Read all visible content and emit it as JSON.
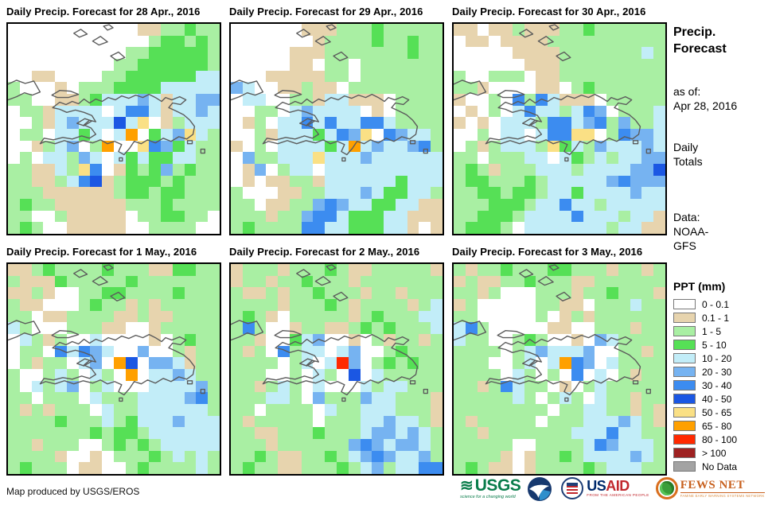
{
  "panels": [
    {
      "title": "Daily Precip. Forecast for 28 Apr., 2016",
      "grid": [
        "WWWWWWWWWWWTTggGgg",
        "WWWWWWWWWWWWgGGgGg",
        "WWWWWWWWWWggGGGGGg",
        "WWWWWWWWWggGGGGGGg",
        "WWTTWWWWggGGGGGGcc",
        "gWWWTWgggGGGGccccc",
        "ggWWTTgGcccbcTccbb",
        "WggTccccWcBBcTccbc",
        "WWgTcbcccDcyWTgccc",
        "WggWccGcWcoWGcbycg",
        "WWTgcbWgoWWyBbGcgg",
        "WgWccgbcWcGcGGccgg",
        "ggTTcgyBWTGgGbgGgg",
        "ggTTgcBDTgGGGgGggg",
        "gggTTTTTTgGGgGGggg",
        "gGggTTTTTTgggGgggg",
        "ggWWgTTTTTWggGGggW",
        "gGgWWTTTTTWWggggWW"
      ]
    },
    {
      "title": "Daily Precip. Forecast for 29 Apr., 2016",
      "grid": [
        "WWWWWWTTTgggGggggg",
        "WWWWWWWTggggGggGgg",
        "WWWWWTTTgggggggGgg",
        "WWWWWTTWggWggggggg",
        "WWWTTTTTggWggggggg",
        "bcWWTTgTTWgggggggg",
        "WccWWggTccTTTWgggg",
        "WWggWcbccccWTWgggg",
        "WTgWccBcBccBBcgggg",
        "WWgTcccGcBbyWBbccg",
        "TWgWccccGcocbccbBg",
        "Wbggcccycccbcccccc",
        "WTbWgccWcccccccccc",
        "WTWTTggTccccccGccc",
        "gWWWTTggcccbcGGccg",
        "ggWTTggbBbccGGccTT",
        "gggTggbBBcGGGccTTT",
        "gGggggBBccGGGccTWT"
      ]
    },
    {
      "title": "Daily Precip. Forecast for 30 Apr., 2016",
      "grid": [
        "TTWTTgTTTggGgggggg",
        "WTTWTTTTgggggggggg",
        "WWWWWTTTTgggggggcg",
        "WWWWWWTTTggggggggg",
        "gWWgggWTTggggggggg",
        "ggTWWWWTTWgGgggggg",
        "TWWgWBgBcTTTWggggg",
        "WTWgWcBccgcBbWgggc",
        "TWTWcccgBBcbBgbggc",
        "WWgWccWcBByyWgBbbc",
        "WgTgcccgyGcgbcccbc",
        "ggWgggccWcGgcgccbb",
        "gGgTgggcccgccccbbD",
        "gGGgggGgcccccbBbbb",
        "ggGGgGGgccGccccbcc",
        "gggGGGgccBccgccccc",
        "ggGGGgccccBcccgccT",
        "gGGGgWcccccccgccTT"
      ]
    },
    {
      "title": "Daily Precip. Forecast for 1 May., 2016",
      "grid": [
        "TTgGggggGgggTTGGgg",
        "gTTTGgggggGggggggg",
        "TTgTWWggGGggggGggg",
        "gTTWWWgGggTgTggggg",
        "ggWTTggggTTgTTgggg",
        "cgWWWgggTTWWTggggg",
        "WcgTgWWcWWWWTWgGgg",
        "WggWBcBbcWWbWWgTgg",
        "WgTggWcbWoDWbbcTgg",
        "gWWgcgWcgWoWccbcgg",
        "gWcgcbWgcWWWccccbg",
        "ggWgggWcgggccccbBg",
        "gTgTgggWcggccccccg",
        "ggggGgggcgGcccbccc",
        "gggggggGgGGgcccccc",
        "ggTgggWWgGgGgccccc",
        "ggggTWWTWgggGgcgcg",
        "gGgggWTTWWgGggggcg"
      ]
    },
    {
      "title": "Daily Precip. Forecast for 2 May., 2016",
      "grid": [
        "TgggTgggGgTTgggggT",
        "TggTggGgggTggggggg",
        "gTTgTggGgggTggTggg",
        "ggggTgggGgTggggTgc",
        "gGgTWgggggTgGgggcc",
        "gBgWWTggTTgGgGgggc",
        "ggTWWGcbWWTWgTggTg",
        "gTgWBgccWcbWWgGggg",
        "ggggWgcWcrbWgGgGgg",
        "gggWWgWcgWDWcggggg",
        "ggTgcgWcWWWcgccggg",
        "gggccgWbgggbccgggT",
        "ggWggggWcggcccgggT",
        "gTgggggWgggccbccgT",
        "ggTTgggGgggcbbcbcg",
        "gggTggggggbBbcbbcg",
        "ggGgTTggGgcbBbccbg",
        "gGggTTgggGgcbgccBB"
      ]
    },
    {
      "title": "Daily Precip. Forecast for 3 May., 2016",
      "grid": [
        "gTggGgggGGgggTggTg",
        "TgTTggGgggTTgggggg",
        "ggTgWWWgggTggGgggT",
        "TgWWWWWggTTWgggcgg",
        "ggWWWWWgWTgTgggggg",
        "cBgWWWWWTTWWgggTgg",
        "cggWWgGgWWTWbcgggg",
        "ggggWgcbcccbWWggTg",
        "gggWWgcWcoBbWcgggg",
        "ggggWcgWgWBWcWgTgg",
        "ggTgBcggWTWgcggggg",
        "gggggcgWgcgWcggTgg",
        "ggggggggWggccggTgT",
        "gTgggggWgggcccbcgT",
        "ggTgggggggcccBccgg",
        "gggggWWggggcBbcccg",
        "ggggTWTggGgccccbcg",
        "gGgTTWTggggGgcccgg"
      ]
    }
  ],
  "info": {
    "title_line1": "Precip.",
    "title_line2": "Forecast",
    "as_of_label": "as of:",
    "as_of_date": "Apr 28, 2016",
    "totals_line1": "Daily",
    "totals_line2": "Totals",
    "data_label": "Data:",
    "data_line1": "NOAA-",
    "data_line2": "GFS"
  },
  "legend": {
    "title": "PPT (mm)",
    "items": [
      {
        "code": "W",
        "label": "0 - 0.1",
        "color": "#ffffff"
      },
      {
        "code": "T",
        "label": "0.1 - 1",
        "color": "#e7d4ae"
      },
      {
        "code": "g",
        "label": "1 - 5",
        "color": "#a9efa3"
      },
      {
        "code": "G",
        "label": "5 - 10",
        "color": "#56e056"
      },
      {
        "code": "c",
        "label": "10 - 20",
        "color": "#c2edf8"
      },
      {
        "code": "b",
        "label": "20 - 30",
        "color": "#76b3f1"
      },
      {
        "code": "B",
        "label": "30 - 40",
        "color": "#3c8cf0"
      },
      {
        "code": "D",
        "label": "40 - 50",
        "color": "#1b57e3"
      },
      {
        "code": "y",
        "label": "50 - 65",
        "color": "#fae085"
      },
      {
        "code": "o",
        "label": "65 - 80",
        "color": "#ffa000"
      },
      {
        "code": "r",
        "label": "80 - 100",
        "color": "#ff2900"
      },
      {
        "code": "R",
        "label": "> 100",
        "color": "#9e2121"
      },
      {
        "code": "N",
        "label": "No Data",
        "color": "#a3a3a3"
      }
    ]
  },
  "footer": {
    "credit": "Map produced by USGS/EROS",
    "usgs_name": "USGS",
    "usgs_wave": "≋",
    "usgs_tagline": "science for a changing world",
    "usaid_us": "US",
    "usaid_aid": "AID",
    "usaid_tagline": "FROM THE AMERICAN PEOPLE",
    "fews_name": "FEWS NET",
    "fews_tagline": "FAMINE EARLY WARNING SYSTEMS NETWORK"
  }
}
